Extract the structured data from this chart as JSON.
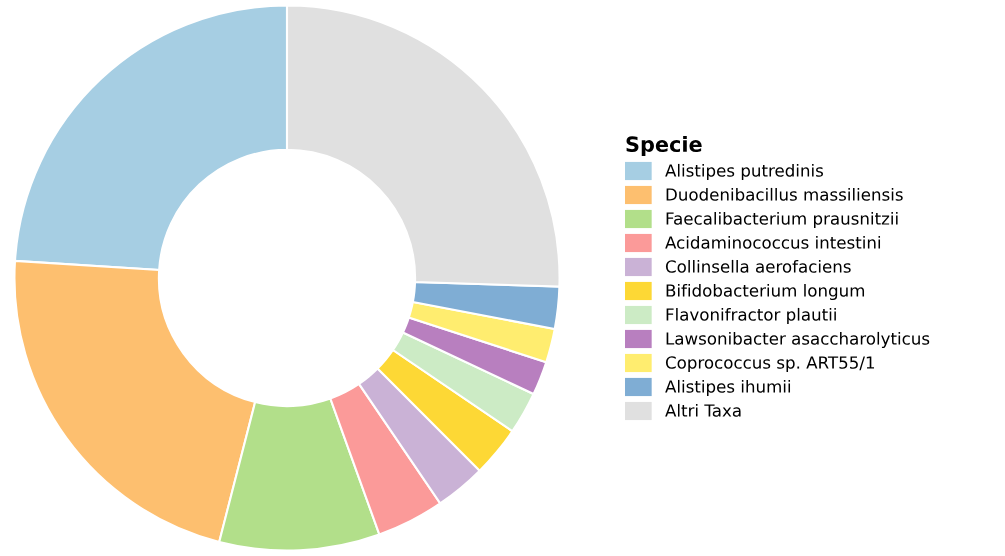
{
  "chart_data": {
    "type": "donut",
    "legend_title": "Specie",
    "legend": "right",
    "categories": [
      "Alistipes putredinis",
      "Duodenibacillus massiliensis",
      "Faecalibacterium prausnitzii",
      "Acidaminococcus intestini",
      "Collinsella aerofaciens",
      "Bifidobacterium longum",
      "Flavonifractor plautii",
      "Lawsonibacter asaccharolyticus",
      "Coprococcus sp. ART55/1",
      "Alistipes ihumii",
      "Altri Taxa"
    ],
    "values": [
      24,
      22,
      9.5,
      4,
      3,
      3,
      2.5,
      2,
      2,
      2.5,
      25.5
    ],
    "colors": [
      "#a6cee3",
      "#fdbf6f",
      "#b2df8a",
      "#fb9a99",
      "#cab2d6",
      "#fdd835",
      "#ccebc5",
      "#b87fbf",
      "#ffed6f",
      "#7fadd4",
      "#e0e0e0"
    ]
  }
}
